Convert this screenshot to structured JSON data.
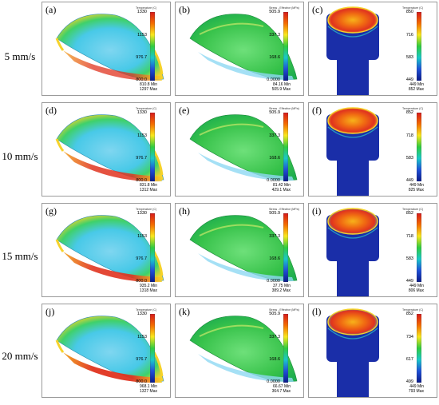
{
  "rows": [
    {
      "label": "5 mm/s"
    },
    {
      "label": "10 mm/s"
    },
    {
      "label": "15 mm/s"
    },
    {
      "label": "20 mm/s"
    }
  ],
  "colorbar_titles": {
    "temperature": "Temperature (C)",
    "stress": "Stress - Effective (MPa)"
  },
  "panels": {
    "a": {
      "tag": "(a)",
      "ticks": [
        "1330",
        "1153",
        "976.7",
        "800.0"
      ],
      "min": "810.8",
      "max": "1297",
      "min_label": "Min",
      "max_label": "Max"
    },
    "b": {
      "tag": "(b)",
      "ticks": [
        "505.9",
        "337.3",
        "168.6",
        "0.0000"
      ],
      "min": "84.16",
      "max": "505.9",
      "min_label": "Min",
      "max_label": "Max"
    },
    "c": {
      "tag": "(c)",
      "ticks": [
        "850",
        "716",
        "583",
        "449"
      ],
      "min": "449",
      "max": "852",
      "min_label": "Min",
      "max_label": "Max"
    },
    "d": {
      "tag": "(d)",
      "ticks": [
        "1330",
        "1153",
        "976.7",
        "800.0"
      ],
      "min": "831.8",
      "max": "1312",
      "min_label": "Min",
      "max_label": "Max"
    },
    "e": {
      "tag": "(e)",
      "ticks": [
        "505.9",
        "337.3",
        "168.6",
        "0.0000"
      ],
      "min": "81.42",
      "max": "429.1",
      "min_label": "Min",
      "max_label": "Max"
    },
    "f": {
      "tag": "(f)",
      "ticks": [
        "852",
        "718",
        "583",
        "449"
      ],
      "min": "449",
      "max": "825",
      "min_label": "Min",
      "max_label": "Max"
    },
    "g": {
      "tag": "(g)",
      "ticks": [
        "1330",
        "1153",
        "976.7",
        "800.0"
      ],
      "min": "935.2",
      "max": "1318",
      "min_label": "Min",
      "max_label": "Max"
    },
    "h": {
      "tag": "(h)",
      "ticks": [
        "505.9",
        "337.3",
        "168.6",
        "0.0000"
      ],
      "min": "37.75",
      "max": "389.2",
      "min_label": "Min",
      "max_label": "Max"
    },
    "i": {
      "tag": "(i)",
      "ticks": [
        "852",
        "718",
        "583",
        "449"
      ],
      "min": "449",
      "max": "806",
      "min_label": "Min",
      "max_label": "Max"
    },
    "j": {
      "tag": "(j)",
      "ticks": [
        "1330",
        "1153",
        "976.7",
        "800.0"
      ],
      "min": "968.1",
      "max": "1327",
      "min_label": "Min",
      "max_label": "Max"
    },
    "k": {
      "tag": "(k)",
      "ticks": [
        "505.9",
        "337.3",
        "168.6",
        "0.0000"
      ],
      "min": "66.67",
      "max": "364.7",
      "min_label": "Min",
      "max_label": "Max"
    },
    "l": {
      "tag": "(l)",
      "ticks": [
        "852",
        "734",
        "617",
        "499"
      ],
      "min": "449",
      "max": "793",
      "min_label": "Min",
      "max_label": "Max"
    }
  },
  "colors": {
    "scale": [
      "#d7191c",
      "#f46d00",
      "#f8e71c",
      "#2ecc40",
      "#19c9c9",
      "#1e4fd8",
      "#0a1a8a"
    ],
    "panel_border": "#9a9a9a",
    "forging_body": "#1a2ea8"
  }
}
